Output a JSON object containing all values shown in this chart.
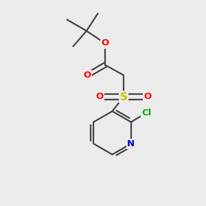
{
  "background_color": "#ebebeb",
  "bond_color": "#404040",
  "atom_colors": {
    "O": "#ff0000",
    "S": "#c8c800",
    "N": "#0000cc",
    "Cl": "#00aa00",
    "C": "#404040"
  },
  "figsize": [
    3.0,
    3.0
  ],
  "dpi": 100
}
